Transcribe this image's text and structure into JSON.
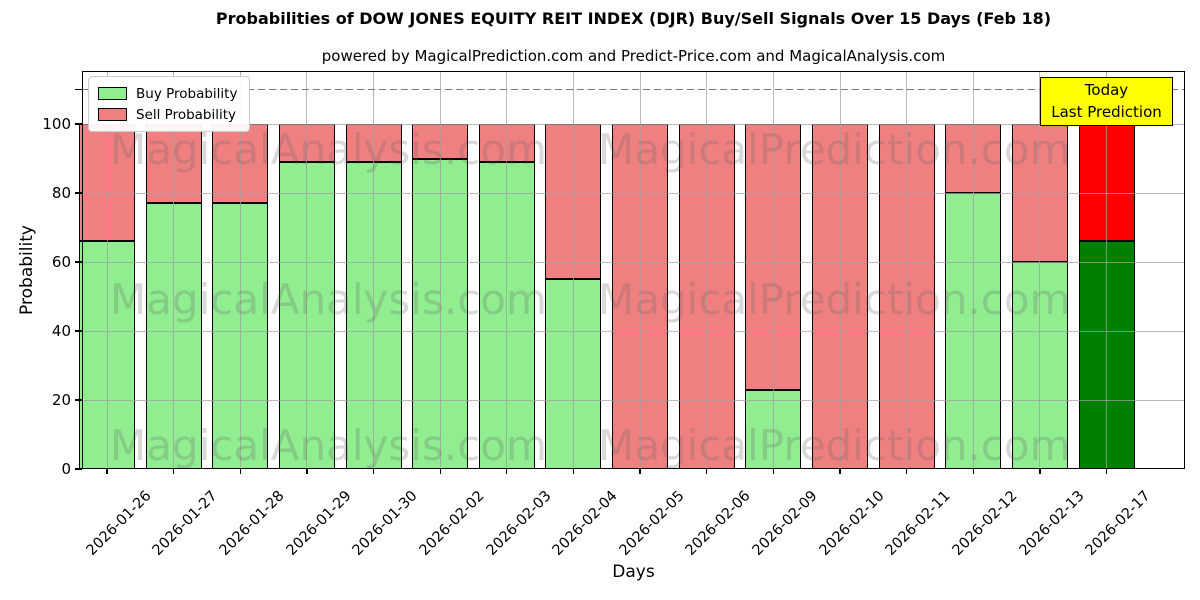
{
  "chart_data": {
    "type": "bar",
    "stacked": true,
    "title": "Probabilities of DOW JONES EQUITY REIT INDEX (DJR) Buy/Sell Signals Over 15 Days (Feb 18)",
    "subtitle": "powered by MagicalPrediction.com and Predict-Price.com and MagicalAnalysis.com",
    "xlabel": "Days",
    "ylabel": "Probability",
    "categories": [
      "2026-01-26",
      "2026-01-27",
      "2026-01-28",
      "2026-01-29",
      "2026-01-30",
      "2026-02-02",
      "2026-02-03",
      "2026-02-04",
      "2026-02-05",
      "2026-02-06",
      "2026-02-09",
      "2026-02-10",
      "2026-02-11",
      "2026-02-12",
      "2026-02-13",
      "2026-02-17"
    ],
    "series": [
      {
        "name": "Buy Probability",
        "color": "#90EE90",
        "values": [
          66,
          77,
          77,
          89,
          89,
          90,
          89,
          55,
          0,
          0,
          23,
          0,
          0,
          80,
          60,
          66
        ]
      },
      {
        "name": "Sell Probability",
        "color": "#F08080",
        "values": [
          34,
          23,
          23,
          11,
          11,
          10,
          11,
          45,
          100,
          100,
          77,
          100,
          100,
          20,
          40,
          34
        ]
      }
    ],
    "today_bar": {
      "category": "2026-02-17",
      "index": 15,
      "buy_color": "#008000",
      "sell_color": "#FF0000"
    },
    "annotation": {
      "line1": "Today",
      "line2": "Last Prediction",
      "bg_color": "#FFFF00",
      "border_color": "#000000"
    },
    "dashed_line_y": 110,
    "ylim": [
      0,
      115
    ],
    "yticks": [
      0,
      20,
      40,
      60,
      80,
      100
    ],
    "extra_y_tick": 110,
    "grid": true,
    "legend_position": "upper-left",
    "bar_edge_color": "#000000",
    "grid_color": "#a0a0a0",
    "watermarks": {
      "left_text": "MagicalAnalysis.com",
      "right_text": "MagicalPrediction.com",
      "rows": 3
    }
  }
}
